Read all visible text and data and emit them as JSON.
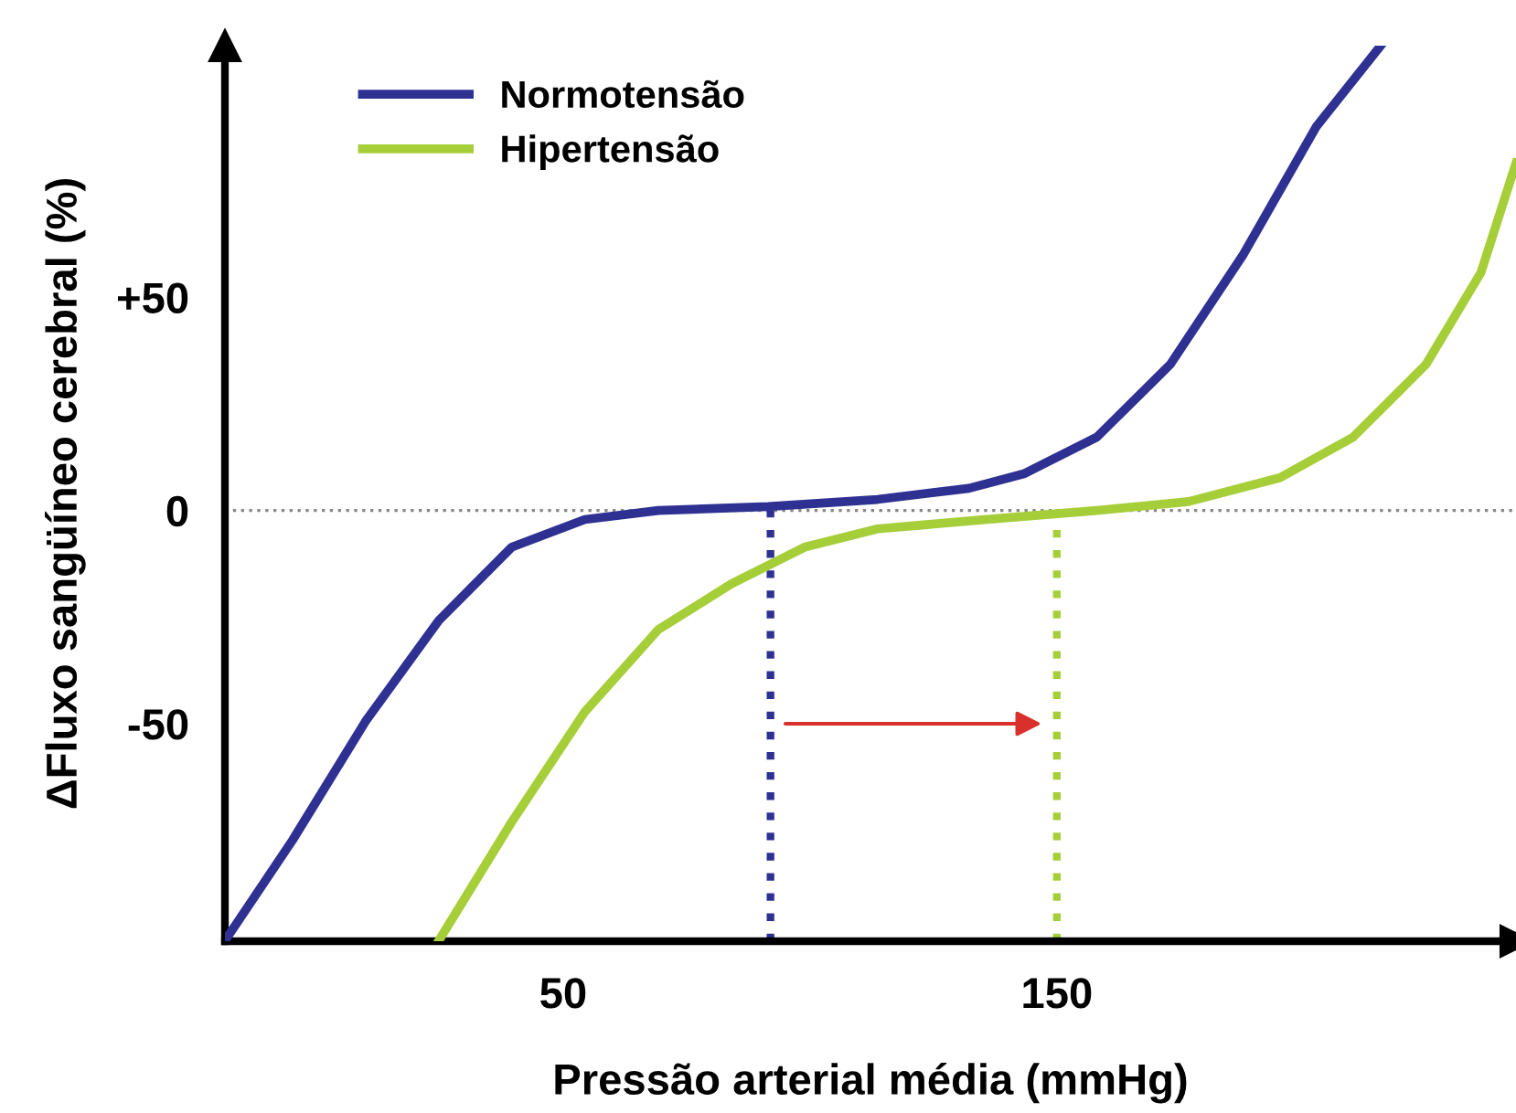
{
  "chart_data": {
    "type": "line",
    "xlabel": "Pressão arterial média (mmHg)",
    "ylabel": "ΔFluxo sangüíneo cerebral (%)",
    "xlim": [
      -18.5,
      243
    ],
    "ylim": [
      -101,
      109
    ],
    "xticks": [
      50,
      150
    ],
    "yticks": [
      {
        "value": 50,
        "label": "+50"
      },
      0,
      -50
    ],
    "legend": "top left",
    "grid": false,
    "marker": "none",
    "line_style": "solid",
    "series": [
      {
        "name": "Normotensão",
        "color": "#2e3192",
        "x": [
          -18.5,
          -4.8,
          10.0,
          24.8,
          39.6,
          54.4,
          69.3,
          91.5,
          113.7,
          132.2,
          143.3,
          158.1,
          173.0,
          187.8,
          202.6,
          215.6
        ],
        "values": [
          -100.9,
          -77.3,
          -49.4,
          -25.8,
          -8.6,
          -2.1,
          0,
          0.9,
          2.6,
          5.2,
          8.6,
          17.2,
          34.3,
          60.1,
          90.1,
          109
        ]
      },
      {
        "name": "Hipertensão",
        "color": "#a6ce39",
        "x": [
          24.8,
          39.6,
          54.4,
          69.3,
          84.1,
          98.9,
          113.7,
          135.9,
          158.1,
          176.7,
          195.2,
          210,
          224.8,
          235.9,
          243
        ],
        "values": [
          -100.9,
          -73.0,
          -47.2,
          -27.9,
          -17.2,
          -8.6,
          -4.3,
          -2.1,
          0,
          2.1,
          7.7,
          17.2,
          34.3,
          55.8,
          81.5
        ]
      }
    ],
    "ref_lines": [
      {
        "axis": "y",
        "value": 0,
        "color": "#888888",
        "line_style": "dotted"
      },
      {
        "axis": "x",
        "value": 92,
        "color": "#2e3192",
        "line_style": "dotted"
      },
      {
        "axis": "x",
        "value": 150,
        "color": "#a6ce39",
        "line_style": "dotted"
      }
    ]
  }
}
